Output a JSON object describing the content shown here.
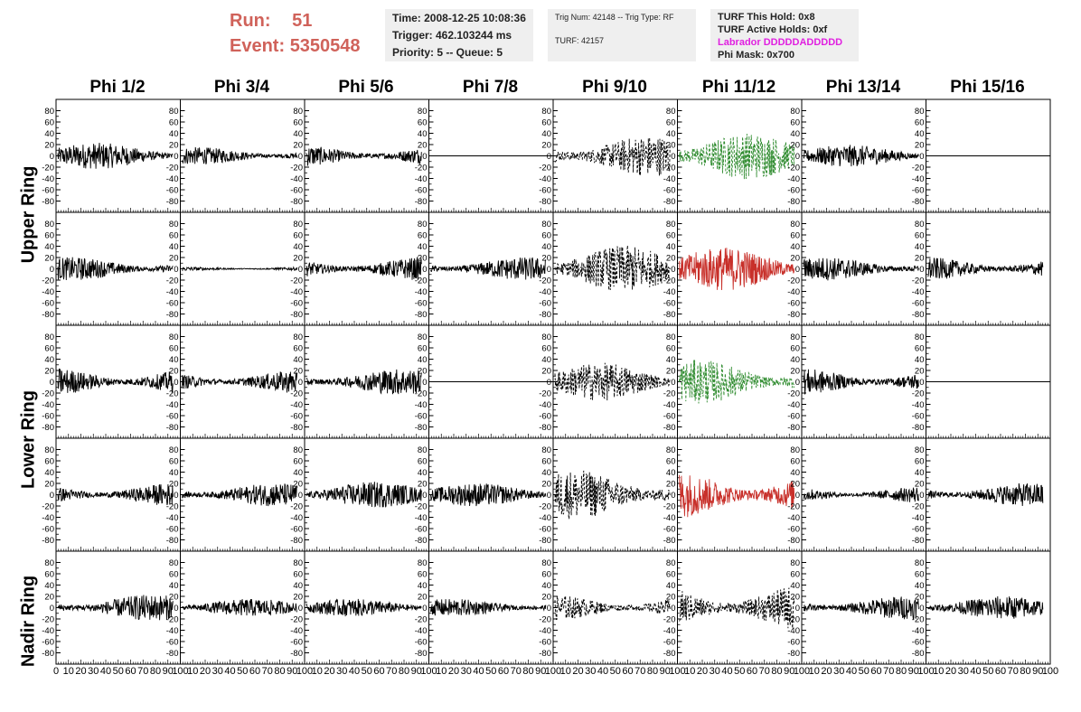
{
  "header": {
    "run_label": "Run:",
    "run_value": "51",
    "event_label": "Event:",
    "event_value": "5350548",
    "time": "Time: 2008-12-25 10:08:36",
    "trigger": "Trigger: 462.103244 ms",
    "priority": "Priority: 5 -- Queue: 5",
    "trig_num": "Trig Num: 42148 -- Trig Type: RF",
    "turf": "TURF: 42157",
    "turf_hold": "TURF This Hold: 0x8",
    "turf_active": "TURF Active Holds: 0xf",
    "labrador": "Labrador DDDDDADDDDD",
    "phi_mask": "Phi Mask: 0x700"
  },
  "colors": {
    "title_red": "#d0625a",
    "labrador_magenta": "#e020e0",
    "trace_black": "#000000",
    "trace_green": "#2e8b2e",
    "trace_red": "#c8302a"
  },
  "columns": [
    "Phi 1/2",
    "Phi 3/4",
    "Phi 5/6",
    "Phi 7/8",
    "Phi 9/10",
    "Phi 11/12",
    "Phi 13/14",
    "Phi 15/16"
  ],
  "rows": [
    "Upper Ring",
    "Upper Ring",
    "Lower Ring",
    "Lower Ring",
    "Nadir Ring"
  ],
  "ring_labels": [
    "Upper Ring",
    "Lower Ring",
    "Nadir Ring"
  ],
  "chart_data": {
    "type": "line",
    "ylim": [
      -100,
      100
    ],
    "xlim": [
      0,
      100
    ],
    "y_ticks": [
      -80,
      -60,
      -40,
      -20,
      0,
      20,
      40,
      60,
      80
    ],
    "x_ticks": [
      0,
      10,
      20,
      30,
      40,
      50,
      60,
      70,
      80,
      90,
      100
    ],
    "panels": [
      [
        {
          "style": "solid",
          "color": "black",
          "amp": 18
        },
        {
          "style": "solid",
          "color": "black",
          "amp": 12
        },
        {
          "style": "solid",
          "color": "black",
          "amp": 15
        },
        {
          "style": "flat",
          "color": "black",
          "amp": 0
        },
        {
          "style": "dashed",
          "color": "black",
          "amp": 28
        },
        {
          "style": "dashed",
          "color": "green",
          "amp": 32
        },
        {
          "style": "solid",
          "color": "black",
          "amp": 15
        },
        {
          "style": "flat",
          "color": "black",
          "amp": 0
        }
      ],
      [
        {
          "style": "solid",
          "color": "black",
          "amp": 16
        },
        {
          "style": "solid",
          "color": "black",
          "amp": 3
        },
        {
          "style": "solid",
          "color": "black",
          "amp": 16
        },
        {
          "style": "solid",
          "color": "black",
          "amp": 16
        },
        {
          "style": "dashed",
          "color": "black",
          "amp": 32
        },
        {
          "style": "solid",
          "color": "red",
          "amp": 30
        },
        {
          "style": "solid",
          "color": "black",
          "amp": 16
        },
        {
          "style": "solid",
          "color": "black",
          "amp": 16
        }
      ],
      [
        {
          "style": "solid",
          "color": "black",
          "amp": 20
        },
        {
          "style": "solid",
          "color": "black",
          "amp": 16
        },
        {
          "style": "solid",
          "color": "black",
          "amp": 18
        },
        {
          "style": "flat",
          "color": "black",
          "amp": 0
        },
        {
          "style": "dashed",
          "color": "black",
          "amp": 26
        },
        {
          "style": "dashed",
          "color": "green",
          "amp": 30
        },
        {
          "style": "solid",
          "color": "black",
          "amp": 18
        },
        {
          "style": "flat",
          "color": "black",
          "amp": 0
        }
      ],
      [
        {
          "style": "solid",
          "color": "black",
          "amp": 16
        },
        {
          "style": "solid",
          "color": "black",
          "amp": 16
        },
        {
          "style": "solid",
          "color": "black",
          "amp": 18
        },
        {
          "style": "solid",
          "color": "black",
          "amp": 16
        },
        {
          "style": "dashed",
          "color": "black",
          "amp": 34
        },
        {
          "style": "solid",
          "color": "red",
          "amp": 32
        },
        {
          "style": "solid",
          "color": "black",
          "amp": 12
        },
        {
          "style": "solid",
          "color": "black",
          "amp": 16
        }
      ],
      [
        {
          "style": "solid",
          "color": "black",
          "amp": 18
        },
        {
          "style": "solid",
          "color": "black",
          "amp": 12
        },
        {
          "style": "solid",
          "color": "black",
          "amp": 12
        },
        {
          "style": "solid",
          "color": "black",
          "amp": 12
        },
        {
          "style": "dashed",
          "color": "black",
          "amp": 18
        },
        {
          "style": "dashed",
          "color": "black",
          "amp": 32
        },
        {
          "style": "solid",
          "color": "black",
          "amp": 16
        },
        {
          "style": "solid",
          "color": "black",
          "amp": 16
        }
      ]
    ]
  }
}
